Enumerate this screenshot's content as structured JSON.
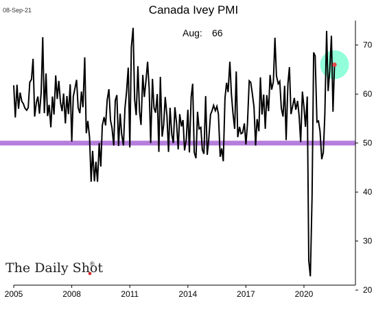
{
  "chart_data": {
    "type": "line",
    "title": "Canada Ivey PMI",
    "date_label": "08-Sep-21",
    "annotation": {
      "label": "Aug:",
      "value": "66"
    },
    "watermark": "The Daily Shot",
    "xlabel": "",
    "ylabel": "",
    "xlim": [
      2005.0,
      2022.2
    ],
    "ylim": [
      21,
      75
    ],
    "x_ticks": [
      2005,
      2008,
      2011,
      2014,
      2017,
      2020
    ],
    "y_ticks": [
      20,
      30,
      40,
      50,
      60,
      70
    ],
    "reference_line": {
      "y": 50,
      "color": "#b57edc"
    },
    "highlight": {
      "x": 2021.58,
      "y": 66,
      "circle_color": "#7fffd4",
      "dot_color": "#e8474a"
    },
    "line_color": "#000000",
    "grid": false,
    "series": [
      {
        "x": [
          2005.0,
          2005.08,
          2005.17,
          2005.25,
          2005.33,
          2005.42,
          2005.5,
          2005.58,
          2005.67,
          2005.75,
          2005.83,
          2005.92,
          2006.0,
          2006.08,
          2006.17,
          2006.25,
          2006.33,
          2006.42,
          2006.5,
          2006.58,
          2006.67,
          2006.75,
          2006.83,
          2006.92,
          2007.0,
          2007.08,
          2007.17,
          2007.25,
          2007.33,
          2007.42,
          2007.5,
          2007.58,
          2007.67,
          2007.75,
          2007.83,
          2007.92,
          2008.0,
          2008.08,
          2008.17,
          2008.25,
          2008.33,
          2008.42,
          2008.5,
          2008.58,
          2008.67,
          2008.75,
          2008.83,
          2008.92,
          2009.0,
          2009.08,
          2009.17,
          2009.25,
          2009.33,
          2009.42,
          2009.5,
          2009.58,
          2009.67,
          2009.75,
          2009.83,
          2009.92,
          2010.0,
          2010.08,
          2010.17,
          2010.25,
          2010.33,
          2010.42,
          2010.5,
          2010.58,
          2010.67,
          2010.75,
          2010.83,
          2010.92,
          2011.0,
          2011.08,
          2011.17,
          2011.25,
          2011.33,
          2011.42,
          2011.5,
          2011.58,
          2011.67,
          2011.75,
          2011.83,
          2011.92,
          2012.0,
          2012.08,
          2012.17,
          2012.25,
          2012.33,
          2012.42,
          2012.5,
          2012.58,
          2012.67,
          2012.75,
          2012.83,
          2012.92,
          2013.0,
          2013.08,
          2013.17,
          2013.25,
          2013.33,
          2013.42,
          2013.5,
          2013.58,
          2013.67,
          2013.75,
          2013.83,
          2013.92,
          2014.0,
          2014.08,
          2014.17,
          2014.25,
          2014.33,
          2014.42,
          2014.5,
          2014.58,
          2014.67,
          2014.75,
          2014.83,
          2014.92,
          2015.0,
          2015.08,
          2015.17,
          2015.25,
          2015.33,
          2015.42,
          2015.5,
          2015.58,
          2015.67,
          2015.75,
          2015.83,
          2015.92,
          2016.0,
          2016.08,
          2016.17,
          2016.25,
          2016.33,
          2016.42,
          2016.5,
          2016.58,
          2016.67,
          2016.75,
          2016.83,
          2016.92,
          2017.0,
          2017.08,
          2017.17,
          2017.25,
          2017.33,
          2017.42,
          2017.5,
          2017.58,
          2017.67,
          2017.75,
          2017.83,
          2017.92,
          2018.0,
          2018.08,
          2018.17,
          2018.25,
          2018.33,
          2018.42,
          2018.5,
          2018.58,
          2018.67,
          2018.75,
          2018.83,
          2018.92,
          2019.0,
          2019.08,
          2019.17,
          2019.25,
          2019.33,
          2019.42,
          2019.5,
          2019.58,
          2019.67,
          2019.75,
          2019.83,
          2019.92,
          2020.0,
          2020.08,
          2020.17,
          2020.25,
          2020.33,
          2020.42,
          2020.5,
          2020.58,
          2020.67,
          2020.75,
          2020.83,
          2020.92,
          2021.0,
          2021.08,
          2021.17,
          2021.25,
          2021.33,
          2021.42,
          2021.5,
          2021.58
        ],
        "values": [
          61.8,
          55.2,
          61.9,
          57.0,
          60.3,
          58.5,
          58.0,
          57.1,
          56.7,
          57.2,
          62.4,
          63.0,
          67.2,
          55.4,
          58.3,
          59.5,
          56.0,
          60.3,
          71.6,
          56.1,
          64.2,
          55.5,
          57.8,
          53.2,
          59.5,
          55.8,
          63.8,
          59.0,
          62.7,
          58.2,
          56.5,
          60.1,
          54.0,
          59.6,
          55.9,
          62.0,
          50.3,
          59.5,
          61.3,
          62.9,
          57.2,
          56.1,
          60.5,
          57.3,
          67.5,
          52.0,
          54.5,
          51.2,
          42.1,
          48.4,
          42.2,
          46.2,
          42.1,
          50.0,
          45.2,
          53.6,
          55.3,
          53.6,
          58.8,
          61.0,
          54.7,
          53.1,
          49.5,
          58.7,
          59.8,
          49.4,
          56.0,
          51.8,
          49.5,
          57.1,
          60.4,
          65.4,
          49.1,
          69.5,
          73.5,
          58.9,
          55.7,
          65.7,
          56.5,
          53.7,
          63.9,
          59.4,
          62.5,
          66.6,
          61.1,
          50.0,
          63.1,
          57.2,
          56.2,
          60.0,
          48.2,
          63.5,
          51.3,
          53.7,
          59.4,
          55.6,
          48.2,
          57.2,
          51.7,
          50.0,
          57.3,
          53.9,
          48.7,
          55.9,
          53.4,
          54.7,
          48.5,
          50.8,
          56.8,
          48.1,
          59.4,
          62.1,
          48.1,
          46.9,
          56.4,
          52.9,
          53.2,
          48.6,
          47.8,
          59.6,
          47.6,
          50.7,
          55.8,
          56.6,
          57.7,
          56.6,
          57.5,
          55.9,
          47.2,
          48.9,
          46.3,
          59.2,
          62.3,
          60.4,
          66.6,
          60.1,
          56.1,
          52.9,
          64.6,
          51.2,
          53.3,
          51.9,
          52.1,
          54.0,
          49.7,
          53.8,
          62.7,
          62.4,
          60.1,
          57.3,
          49.5,
          54.9,
          52.4,
          63.4,
          55.8,
          59.9,
          52.9,
          59.8,
          56.5,
          63.9,
          60.9,
          62.5,
          71.5,
          63.7,
          62.1,
          62.6,
          57.1,
          55.4,
          61.7,
          50.6,
          62.1,
          65.5,
          55.9,
          57.6,
          59.2,
          56.8,
          58.6,
          55.6,
          50.2,
          60.5,
          57.3,
          53.3,
          59.5,
          26.0,
          22.8,
          39.1,
          68.5,
          67.8,
          54.3,
          54.5,
          52.4,
          46.7,
          48.1,
          55.8,
          72.9,
          60.6,
          64.7,
          71.9,
          56.4,
          66.0
        ]
      }
    ]
  }
}
